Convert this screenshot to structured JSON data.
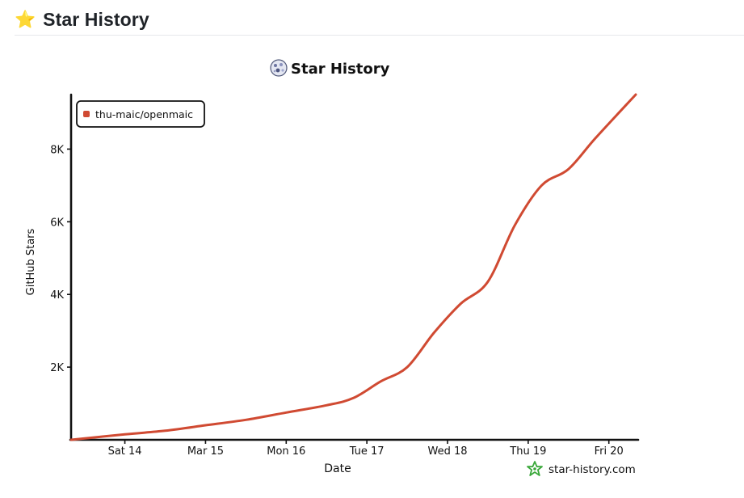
{
  "header": {
    "icon": "star-icon",
    "title": "Star History"
  },
  "brand": {
    "text": "star-history.com",
    "icon": "star-history-logo-icon"
  },
  "chart_data": {
    "type": "line",
    "title": "Star History",
    "title_icon": "openmaic-avatar-icon",
    "xlabel": "Date",
    "ylabel": "GitHub Stars",
    "x_ticks": [
      "Sat 14",
      "Mar 15",
      "Mon 16",
      "Tue 17",
      "Wed 18",
      "Thu 19",
      "Fri 20"
    ],
    "x_range": [
      "2026-03-13T08:00",
      "2026-03-20T08:00"
    ],
    "y_ticks": [
      2000,
      4000,
      6000,
      8000
    ],
    "y_tick_labels": [
      "2K",
      "4K",
      "6K",
      "8K"
    ],
    "ylim": [
      0,
      9500
    ],
    "grid": false,
    "legend": "top-left",
    "colors": {
      "series": "#d04a32",
      "axis": "#111111",
      "brand": "#3aa83a"
    },
    "series": [
      {
        "name": "thu-maic/openmaic",
        "x": [
          "2026-03-13T08:00",
          "2026-03-14T00:00",
          "2026-03-14T12:00",
          "2026-03-15T00:00",
          "2026-03-15T12:00",
          "2026-03-16T00:00",
          "2026-03-16T12:00",
          "2026-03-16T20:00",
          "2026-03-17T04:00",
          "2026-03-17T12:00",
          "2026-03-17T20:00",
          "2026-03-18T04:00",
          "2026-03-18T12:00",
          "2026-03-18T20:00",
          "2026-03-19T04:00",
          "2026-03-19T12:00",
          "2026-03-19T20:00",
          "2026-03-20T08:00"
        ],
        "y": [
          0,
          150,
          250,
          400,
          550,
          750,
          950,
          1150,
          1600,
          2000,
          2950,
          3750,
          4350,
          5900,
          7000,
          7450,
          8300,
          9500
        ]
      }
    ]
  }
}
